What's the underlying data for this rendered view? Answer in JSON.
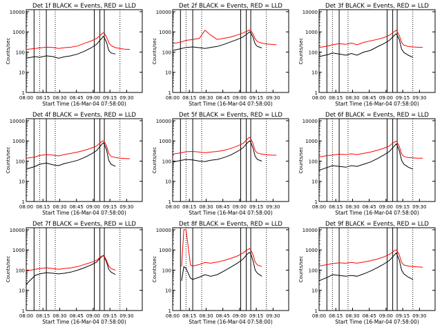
{
  "chart_data": [
    {
      "type": "line",
      "title": "Det 1f BLACK = Events, RED = LLD",
      "xlabel": "Start Time (16-Mar-04 07:58:00)",
      "ylabel": "Counts/sec",
      "xticks": [
        "08:00",
        "08:15",
        "08:30",
        "08:45",
        "09:00",
        "09:15",
        "09:30"
      ],
      "yticks": [
        "1",
        "10",
        "100",
        "1000",
        "10000"
      ],
      "ylim": [
        1,
        12000
      ],
      "x_minutes": [
        2,
        10,
        14,
        20,
        26,
        31,
        36,
        42,
        48,
        54,
        60,
        65,
        68,
        70,
        71,
        72,
        74,
        76,
        78,
        82,
        86,
        90,
        95
      ],
      "series": [
        {
          "name": "Events",
          "color": "#000000",
          "values": [
            50,
            60,
            55,
            65,
            60,
            50,
            58,
            65,
            80,
            110,
            160,
            240,
            380,
            500,
            600,
            520,
            300,
            120,
            90,
            80,
            null,
            null,
            null
          ]
        },
        {
          "name": "LLD",
          "color": "#ff0000",
          "values": [
            135,
            150,
            160,
            175,
            170,
            150,
            165,
            175,
            200,
            270,
            350,
            470,
            650,
            820,
            900,
            850,
            560,
            290,
            210,
            165,
            150,
            140,
            135
          ]
        }
      ],
      "vlines": [
        9,
        20,
        63,
        68,
        72
      ],
      "dotted_vlines": [
        14,
        28,
        86
      ]
    },
    {
      "type": "line",
      "title": "Det 2f BLACK = Events, RED = LLD",
      "xlabel": "Start Time (16-Mar-04 07:58:00)",
      "ylabel": "Counts/sec",
      "xticks": [
        "08:00",
        "08:15",
        "08:30",
        "08:45",
        "09:00",
        "09:15",
        "09:30"
      ],
      "yticks": [
        "1",
        "10",
        "100",
        "1000",
        "10000"
      ],
      "ylim": [
        1,
        12000
      ],
      "x_minutes": [
        2,
        10,
        14,
        20,
        26,
        31,
        36,
        42,
        48,
        54,
        60,
        65,
        68,
        70,
        71,
        72,
        74,
        76,
        78,
        82,
        86,
        90,
        95
      ],
      "series": [
        {
          "name": "Events",
          "color": "#000000",
          "values": [
            120,
            150,
            170,
            180,
            165,
            150,
            170,
            190,
            240,
            320,
            420,
            560,
            750,
            900,
            1000,
            900,
            550,
            250,
            190,
            160,
            null,
            null,
            null
          ]
        },
        {
          "name": "LLD",
          "color": "#ff0000",
          "values": [
            260,
            320,
            380,
            420,
            480,
            1200,
            700,
            420,
            480,
            560,
            700,
            880,
            1050,
            1150,
            1250,
            1150,
            800,
            450,
            330,
            280,
            250,
            240,
            230
          ]
        }
      ],
      "vlines": [
        9,
        20,
        63,
        68,
        72
      ],
      "dotted_vlines": [
        14,
        28,
        86
      ]
    },
    {
      "type": "line",
      "title": "Det 3f BLACK = Events, RED = LLD",
      "xlabel": "Start Time (16-Mar-04 07:58:00)",
      "ylabel": "Counts/sec",
      "xticks": [
        "08:00",
        "08:15",
        "08:30",
        "08:45",
        "09:00",
        "09:15",
        "09:30"
      ],
      "yticks": [
        "1",
        "10",
        "100",
        "1000",
        "10000"
      ],
      "ylim": [
        1,
        12000
      ],
      "x_minutes": [
        2,
        10,
        14,
        20,
        26,
        31,
        36,
        42,
        48,
        54,
        60,
        65,
        68,
        70,
        71,
        72,
        74,
        76,
        78,
        82,
        86,
        90,
        95
      ],
      "series": [
        {
          "name": "Events",
          "color": "#000000",
          "values": [
            60,
            75,
            90,
            80,
            70,
            85,
            70,
            100,
            120,
            180,
            260,
            380,
            560,
            720,
            800,
            700,
            400,
            140,
            95,
            70,
            55,
            null,
            null
          ]
        },
        {
          "name": "LLD",
          "color": "#ff0000",
          "values": [
            170,
            200,
            230,
            260,
            240,
            280,
            230,
            300,
            360,
            420,
            520,
            680,
            900,
            1100,
            1200,
            1050,
            650,
            300,
            220,
            190,
            180,
            175,
            170
          ]
        }
      ],
      "vlines": [
        9,
        20,
        63,
        68,
        72
      ],
      "dotted_vlines": [
        14,
        28,
        86
      ]
    },
    {
      "type": "line",
      "title": "Det 4f BLACK = Events, RED = LLD",
      "xlabel": "Start Time (16-Mar-04 07:58:00)",
      "ylabel": "Counts/sec",
      "xticks": [
        "08:00",
        "08:15",
        "08:30",
        "08:45",
        "09:00",
        "09:15",
        "09:30"
      ],
      "yticks": [
        "1",
        "10",
        "100",
        "1000",
        "10000"
      ],
      "ylim": [
        1,
        12000
      ],
      "x_minutes": [
        2,
        10,
        14,
        20,
        26,
        31,
        36,
        42,
        48,
        54,
        60,
        65,
        68,
        70,
        71,
        72,
        74,
        76,
        78,
        82,
        86,
        90,
        95
      ],
      "series": [
        {
          "name": "Events",
          "color": "#000000",
          "values": [
            40,
            55,
            70,
            80,
            65,
            60,
            75,
            90,
            110,
            150,
            220,
            330,
            520,
            700,
            800,
            680,
            360,
            110,
            70,
            55,
            null,
            null,
            null
          ]
        },
        {
          "name": "LLD",
          "color": "#ff0000",
          "values": [
            140,
            160,
            190,
            210,
            200,
            180,
            210,
            240,
            280,
            340,
            430,
            560,
            780,
            950,
            1000,
            920,
            560,
            240,
            170,
            150,
            140,
            135,
            130
          ]
        }
      ],
      "vlines": [
        9,
        20,
        63,
        68,
        72
      ],
      "dotted_vlines": [
        14,
        28,
        86
      ]
    },
    {
      "type": "line",
      "title": "Det 5f BLACK = Events, RED = LLD",
      "xlabel": "Start Time (16-Mar-04 07:58:00)",
      "ylabel": "Counts/sec",
      "xticks": [
        "08:00",
        "08:15",
        "08:30",
        "08:45",
        "09:00",
        "09:15",
        "09:30"
      ],
      "yticks": [
        "1",
        "10",
        "100",
        "1000",
        "10000"
      ],
      "ylim": [
        1,
        12000
      ],
      "x_minutes": [
        2,
        10,
        14,
        20,
        26,
        31,
        36,
        42,
        48,
        54,
        60,
        65,
        68,
        70,
        71,
        72,
        74,
        76,
        78,
        82,
        86,
        90,
        95
      ],
      "series": [
        {
          "name": "Events",
          "color": "#000000",
          "values": [
            90,
            110,
            120,
            115,
            100,
            95,
            110,
            120,
            150,
            200,
            300,
            450,
            700,
            900,
            1000,
            850,
            450,
            170,
            120,
            100,
            null,
            null,
            null
          ]
        },
        {
          "name": "LLD",
          "color": "#ff0000",
          "values": [
            220,
            260,
            290,
            300,
            280,
            260,
            280,
            300,
            340,
            420,
            560,
            750,
            1100,
            1400,
            1500,
            1300,
            750,
            330,
            250,
            220,
            210,
            200,
            195
          ]
        }
      ],
      "vlines": [
        9,
        20,
        63,
        68,
        72
      ],
      "dotted_vlines": [
        14,
        28,
        86
      ]
    },
    {
      "type": "line",
      "title": "Det 6f BLACK = Events, RED = LLD",
      "xlabel": "Start Time (16-Mar-04 07:58:00)",
      "ylabel": "Counts/sec",
      "xticks": [
        "08:00",
        "08:15",
        "08:30",
        "08:45",
        "09:00",
        "09:15",
        "09:30"
      ],
      "yticks": [
        "1",
        "10",
        "100",
        "1000",
        "10000"
      ],
      "ylim": [
        1,
        12000
      ],
      "x_minutes": [
        2,
        10,
        14,
        20,
        26,
        31,
        36,
        42,
        48,
        54,
        60,
        65,
        68,
        70,
        71,
        72,
        74,
        76,
        78,
        82,
        86,
        90,
        95
      ],
      "series": [
        {
          "name": "Events",
          "color": "#000000",
          "values": [
            35,
            50,
            60,
            55,
            50,
            60,
            55,
            70,
            90,
            130,
            200,
            300,
            450,
            600,
            700,
            600,
            320,
            110,
            70,
            50,
            40,
            null,
            null
          ]
        },
        {
          "name": "LLD",
          "color": "#ff0000",
          "values": [
            160,
            190,
            200,
            220,
            210,
            230,
            210,
            240,
            280,
            340,
            430,
            560,
            780,
            900,
            950,
            850,
            520,
            230,
            170,
            150,
            145,
            140,
            140
          ]
        }
      ],
      "vlines": [
        9,
        20,
        63,
        68,
        72
      ],
      "dotted_vlines": [
        14,
        28,
        86
      ]
    },
    {
      "type": "line",
      "title": "Det 7f BLACK = Events, RED = LLD",
      "xlabel": "Start Time (16-Mar-04 07:58:00)",
      "ylabel": "Counts/sec",
      "xticks": [
        "08:00",
        "08:15",
        "08:30",
        "08:45",
        "09:00",
        "09:15",
        "09:30"
      ],
      "yticks": [
        "1",
        "10",
        "100",
        "1000",
        "10000"
      ],
      "ylim": [
        1,
        12000
      ],
      "x_minutes": [
        2,
        10,
        14,
        20,
        26,
        31,
        36,
        42,
        48,
        54,
        60,
        65,
        68,
        70,
        71,
        72,
        74,
        76,
        78,
        82,
        86,
        90,
        95
      ],
      "series": [
        {
          "name": "Events",
          "color": "#000000",
          "values": [
            20,
            55,
            65,
            75,
            70,
            65,
            70,
            80,
            100,
            130,
            180,
            250,
            380,
            480,
            520,
            450,
            250,
            110,
            80,
            60,
            null,
            null,
            null
          ]
        },
        {
          "name": "LLD",
          "color": "#ff0000",
          "values": [
            90,
            110,
            120,
            130,
            120,
            110,
            120,
            130,
            150,
            190,
            240,
            310,
            420,
            500,
            540,
            480,
            300,
            160,
            120,
            100,
            null,
            null,
            null
          ]
        }
      ],
      "vlines": [
        9,
        20,
        63,
        68,
        72
      ],
      "dotted_vlines": [
        14,
        28,
        86
      ]
    },
    {
      "type": "line",
      "title": "Det 8f BLACK = Events, RED = LLD",
      "xlabel": "Start Time (16-Mar-04 07:58:00)",
      "ylabel": "Counts/sec",
      "xticks": [
        "08:00",
        "08:15",
        "08:30",
        "08:45",
        "09:00",
        "09:15",
        "09:30"
      ],
      "yticks": [
        "1",
        "10",
        "100",
        "1000",
        "10000"
      ],
      "ylim": [
        1,
        12000
      ],
      "x_minutes": [
        2,
        10,
        12,
        14,
        18,
        20,
        26,
        31,
        36,
        42,
        48,
        54,
        60,
        65,
        68,
        70,
        71,
        72,
        74,
        76,
        78,
        82,
        86,
        90,
        95
      ],
      "series": [
        {
          "name": "Events",
          "color": "#000000",
          "values": [
            null,
            30,
            150,
            120,
            40,
            35,
            45,
            60,
            50,
            60,
            90,
            140,
            220,
            350,
            550,
            700,
            750,
            650,
            300,
            100,
            70,
            50,
            null,
            null,
            null
          ]
        },
        {
          "name": "LLD",
          "color": "#ff0000",
          "values": [
            null,
            150,
            10000,
            10000,
            180,
            160,
            190,
            240,
            220,
            250,
            300,
            380,
            500,
            700,
            950,
            1100,
            1150,
            1000,
            600,
            250,
            180,
            150,
            null,
            null,
            null
          ]
        }
      ],
      "vlines": [
        9,
        20,
        63,
        68,
        72
      ],
      "dotted_vlines": [
        14,
        28,
        86
      ]
    },
    {
      "type": "line",
      "title": "Det 9f BLACK = Events, RED = LLD",
      "xlabel": "Start Time (16-Mar-04 07:58:00)",
      "ylabel": "Counts/sec",
      "xticks": [
        "08:00",
        "08:15",
        "08:30",
        "08:45",
        "09:00",
        "09:15",
        "09:30"
      ],
      "yticks": [
        "1",
        "10",
        "100",
        "1000",
        "10000"
      ],
      "ylim": [
        1,
        12000
      ],
      "x_minutes": [
        2,
        10,
        14,
        20,
        26,
        31,
        36,
        42,
        48,
        54,
        60,
        65,
        68,
        70,
        71,
        72,
        74,
        76,
        78,
        82,
        86,
        90,
        95
      ],
      "series": [
        {
          "name": "Events",
          "color": "#000000",
          "values": [
            30,
            45,
            60,
            55,
            50,
            55,
            50,
            65,
            90,
            130,
            200,
            300,
            450,
            600,
            700,
            580,
            300,
            100,
            65,
            45,
            35,
            null,
            null
          ]
        },
        {
          "name": "LLD",
          "color": "#ff0000",
          "values": [
            160,
            190,
            210,
            230,
            220,
            240,
            220,
            250,
            290,
            350,
            450,
            600,
            800,
            950,
            1000,
            900,
            550,
            240,
            180,
            160,
            150,
            145,
            140
          ]
        }
      ],
      "vlines": [
        9,
        20,
        63,
        68,
        72
      ],
      "dotted_vlines": [
        14,
        28,
        86
      ]
    }
  ]
}
